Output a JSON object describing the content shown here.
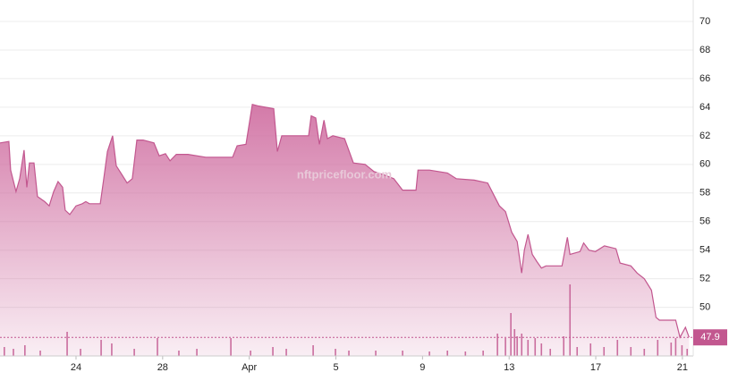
{
  "chart_data": {
    "type": "area",
    "watermark": "nftpricefloor.com",
    "x": [
      20.49,
      20.9,
      20.98,
      21.23,
      21.4,
      21.6,
      21.73,
      21.85,
      22.06,
      22.22,
      22.55,
      22.76,
      22.97,
      23.17,
      23.38,
      23.5,
      23.71,
      24.0,
      24.29,
      24.45,
      24.62,
      25.12,
      25.28,
      25.45,
      25.69,
      25.86,
      26.11,
      26.36,
      26.6,
      26.81,
      27.1,
      27.6,
      27.84,
      28.13,
      28.34,
      28.63,
      29.17,
      29.99,
      31.23,
      31.44,
      31.85,
      32.14,
      32.39,
      33.13,
      33.3,
      33.5,
      34.74,
      34.86,
      35.07,
      35.24,
      35.45,
      35.61,
      35.86,
      36.4,
      36.81,
      37.35,
      37.76,
      38.26,
      38.67,
      39.08,
      39.7,
      39.79,
      40.32,
      41.15,
      41.56,
      42.39,
      43.01,
      43.21,
      43.55,
      43.83,
      44.12,
      44.37,
      44.58,
      44.7,
      44.87,
      45.07,
      45.28,
      45.49,
      45.7,
      46.44,
      46.69,
      46.81,
      47.27,
      47.44,
      47.69,
      47.98,
      48.4,
      48.93,
      49.12,
      49.62,
      49.91,
      50.24,
      50.57,
      50.78,
      50.94,
      51.69,
      51.89,
      52.14,
      52.31
    ],
    "values": [
      61.5,
      61.6,
      59.6,
      58.1,
      59.0,
      61.0,
      58.4,
      60.1,
      60.1,
      57.75,
      57.4,
      57.1,
      58.1,
      58.8,
      58.4,
      56.8,
      56.5,
      57.1,
      57.25,
      57.4,
      57.25,
      57.25,
      59.0,
      60.9,
      62.0,
      59.9,
      59.3,
      58.7,
      59.0,
      61.7,
      61.7,
      61.5,
      60.6,
      60.75,
      60.25,
      60.7,
      60.7,
      60.5,
      60.5,
      61.3,
      61.4,
      64.2,
      64.1,
      63.9,
      60.9,
      62.0,
      62.0,
      63.4,
      63.25,
      61.4,
      63.1,
      61.8,
      62.0,
      61.8,
      60.1,
      60.0,
      59.5,
      59.25,
      59.0,
      58.2,
      58.2,
      59.6,
      59.6,
      59.4,
      59.0,
      58.9,
      58.7,
      58.1,
      57.1,
      56.7,
      55.25,
      54.6,
      52.4,
      54.0,
      55.1,
      53.7,
      53.2,
      52.75,
      52.9,
      52.9,
      54.9,
      53.7,
      53.9,
      54.5,
      54.0,
      53.9,
      54.3,
      54.1,
      53.1,
      52.9,
      52.4,
      52.0,
      51.2,
      49.3,
      49.1,
      49.1,
      47.9,
      48.6,
      47.9
    ],
    "color": "#c2578f",
    "xlim": [
      20.49,
      52.5
    ],
    "xticks": [
      24,
      28,
      {
        "value": 32,
        "label": "Apr"
      },
      {
        "value": 36,
        "label": "5"
      },
      {
        "value": 40,
        "label": "9"
      },
      {
        "value": 44,
        "label": "13"
      },
      {
        "value": 48,
        "label": "17"
      },
      {
        "value": 52,
        "label": "21"
      }
    ],
    "ylim": [
      46.6,
      71.5
    ],
    "yticks": [
      50,
      52,
      54,
      56,
      58,
      60,
      62,
      64,
      66,
      68,
      70
    ],
    "grid": true,
    "last_value": 47.9,
    "volume": {
      "x": [
        20.69,
        21.11,
        21.64,
        22.35,
        23.59,
        24.21,
        25.16,
        25.65,
        26.69,
        27.76,
        28.75,
        29.58,
        31.15,
        32.06,
        33.09,
        33.71,
        34.95,
        35.98,
        36.6,
        37.84,
        39.08,
        40.32,
        41.15,
        41.98,
        42.8,
        43.46,
        43.83,
        44.08,
        44.25,
        44.37,
        44.58,
        44.87,
        45.2,
        45.49,
        45.9,
        46.52,
        46.81,
        47.14,
        47.76,
        48.38,
        49.0,
        49.62,
        50.24,
        50.86,
        51.48,
        51.69,
        51.98,
        52.22
      ],
      "values": [
        10,
        8,
        12,
        6,
        27,
        8,
        18,
        14,
        8,
        20,
        6,
        8,
        20,
        6,
        10,
        8,
        12,
        8,
        6,
        6,
        6,
        5,
        6,
        5,
        6,
        25,
        20,
        48,
        30,
        22,
        25,
        18,
        20,
        14,
        8,
        22,
        80,
        10,
        14,
        10,
        18,
        10,
        8,
        18,
        15,
        20,
        12,
        8
      ],
      "ylim": [
        0,
        100
      ],
      "color": "#c2578f"
    }
  }
}
